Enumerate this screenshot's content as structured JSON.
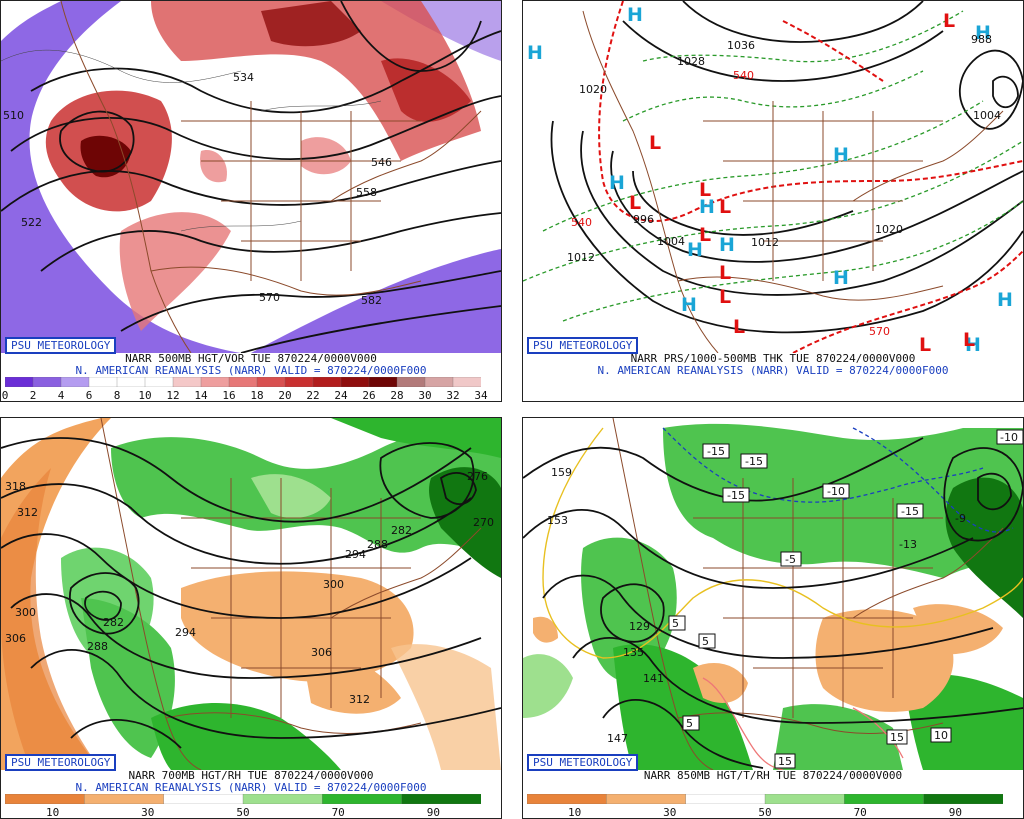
{
  "badge": "PSU METEOROLOGY",
  "panels": [
    {
      "caption": "NARR 500MB HGT/VOR TUE 870224/0000V000",
      "subcaption": "N. AMERICAN REANALYSIS (NARR) VALID = 870224/0000F000",
      "colorbar_ticks": [
        "0",
        "2",
        "4",
        "6",
        "8",
        "10",
        "12",
        "14",
        "16",
        "18",
        "20",
        "22",
        "24",
        "26",
        "28",
        "30",
        "32",
        "34"
      ],
      "colorbar_colors": [
        "#6a2ed6",
        "#8a60e0",
        "#b49cf0",
        "#ffffff",
        "#ffffff",
        "#ffffff",
        "#f4c8c8",
        "#ee9e9e",
        "#e67777",
        "#d85050",
        "#c93030",
        "#b21d1d",
        "#8f0e0e",
        "#6e0505",
        "#b27a7a",
        "#d6a4a4",
        "#f0c8c8"
      ],
      "labels": [
        "534",
        "546",
        "558",
        "570",
        "582",
        "522",
        "510",
        "570"
      ]
    },
    {
      "caption": "NARR PRS/1000-500MB THK TUE 870224/0000V000",
      "subcaption": "N. AMERICAN REANALYSIS (NARR) VALID = 870224/0000F000",
      "labels": [
        "1036",
        "1028",
        "1020",
        "1012",
        "1004",
        "996",
        "1020",
        "540",
        "570",
        "988",
        "540",
        "1004",
        "1012"
      ],
      "highs": "H",
      "lows": "L"
    },
    {
      "caption": "NARR 700MB HGT/RH TUE 870224/0000V000",
      "subcaption": "N. AMERICAN REANALYSIS (NARR) VALID = 870224/0000F000",
      "colorbar_ticks": [
        "10",
        "30",
        "50",
        "70",
        "90"
      ],
      "colorbar_colors": [
        "#e8833a",
        "#f4b070",
        "#ffffff",
        "#9ee08e",
        "#2eb52e",
        "#117711"
      ],
      "labels": [
        "318",
        "312",
        "306",
        "300",
        "294",
        "288",
        "282",
        "276",
        "270",
        "282",
        "288",
        "294",
        "300",
        "306",
        "312"
      ]
    },
    {
      "caption": "NARR 850MB HGT/T/RH TUE 870224/0000V000",
      "subcaption": "",
      "colorbar_ticks": [
        "10",
        "30",
        "50",
        "70",
        "90"
      ],
      "colorbar_colors": [
        "#e8833a",
        "#f4b070",
        "#ffffff",
        "#9ee08e",
        "#2eb52e",
        "#117711"
      ],
      "labels": [
        "-15",
        "-15",
        "-15",
        "-10",
        "-15",
        "-10",
        "-5",
        "-5",
        "-5",
        "5",
        "5",
        "5",
        "5",
        "10",
        "15",
        "15",
        "153",
        "159",
        "147",
        "141",
        "135",
        "129",
        "-10",
        "-13",
        "-9"
      ]
    }
  ]
}
